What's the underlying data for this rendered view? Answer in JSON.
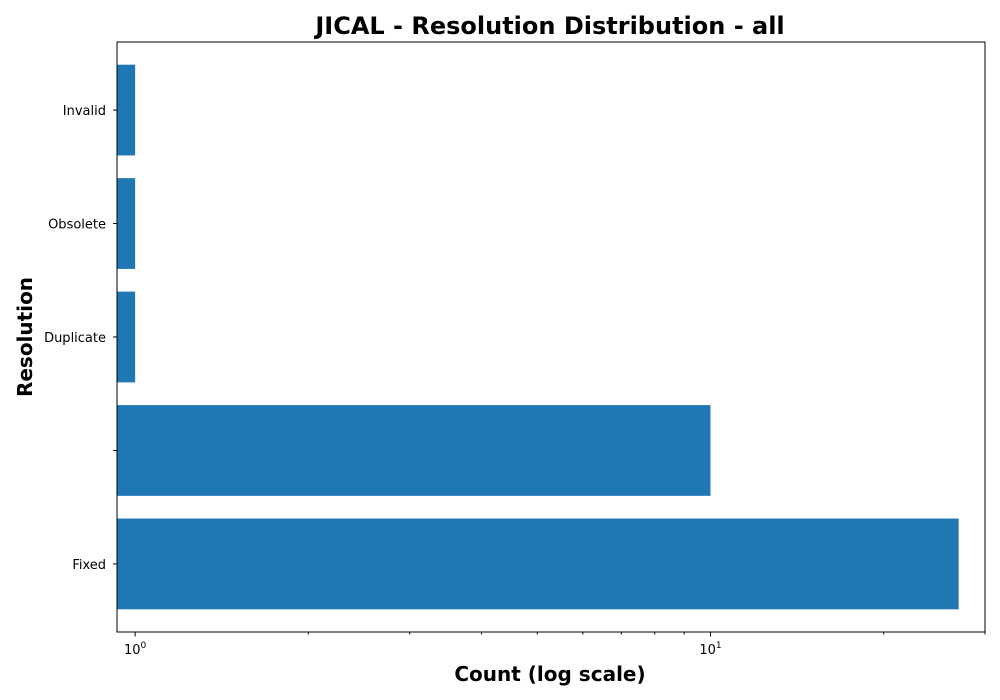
{
  "chart_data": {
    "type": "bar",
    "orientation": "horizontal",
    "title": "JICAL - Resolution Distribution - all",
    "xlabel": "Count (log scale)",
    "ylabel": "Resolution",
    "xscale": "log",
    "xlim": [
      0.93,
      30
    ],
    "categories": [
      "Fixed",
      "",
      "Duplicate",
      "Obsolete",
      "Invalid"
    ],
    "values": [
      27,
      10,
      1,
      1,
      1
    ],
    "x_major_ticks": [
      {
        "value": 1,
        "base": "10",
        "exp": "0"
      },
      {
        "value": 10,
        "base": "10",
        "exp": "1"
      }
    ],
    "x_minor_ticks": [
      2,
      3,
      4,
      5,
      6,
      7,
      8,
      9,
      20,
      30
    ],
    "bar_color": "#1f77b4",
    "grid": false,
    "legend": "none"
  }
}
